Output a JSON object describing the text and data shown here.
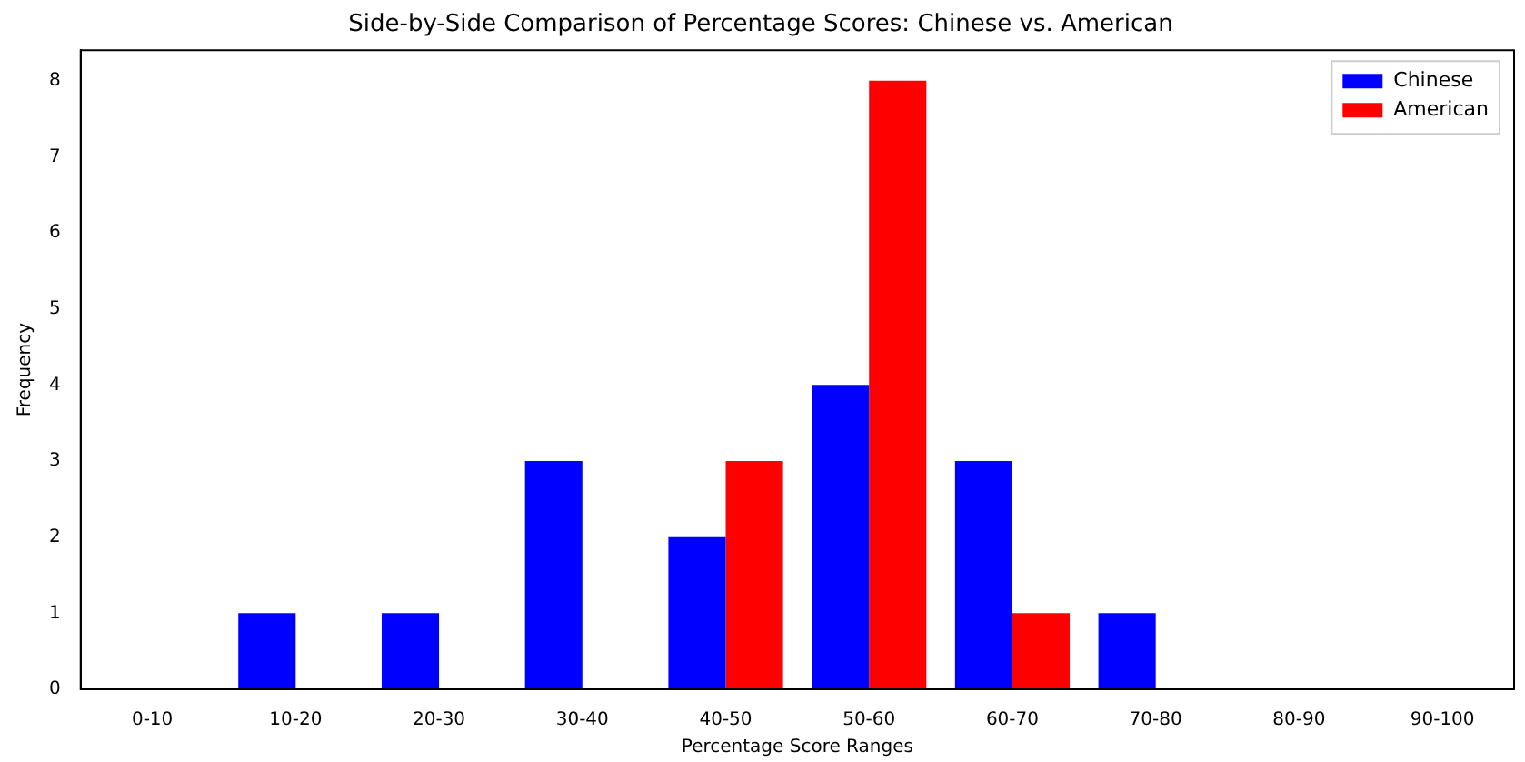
{
  "chart_data": {
    "type": "bar",
    "title": "Side-by-Side Comparison of Percentage Scores: Chinese vs. American",
    "xlabel": "Percentage Score Ranges",
    "ylabel": "Frequency",
    "categories": [
      "0-10",
      "10-20",
      "20-30",
      "30-40",
      "40-50",
      "50-60",
      "60-70",
      "70-80",
      "80-90",
      "90-100"
    ],
    "series": [
      {
        "name": "Chinese",
        "color": "#0000ff",
        "values": [
          0,
          1,
          1,
          3,
          2,
          4,
          3,
          1,
          0,
          0
        ]
      },
      {
        "name": "American",
        "color": "#ff0000",
        "values": [
          0,
          0,
          0,
          0,
          3,
          8,
          1,
          0,
          0,
          0
        ]
      }
    ],
    "ylim": [
      0,
      8.4
    ],
    "yticks": [
      0,
      1,
      2,
      3,
      4,
      5,
      6,
      7,
      8
    ],
    "grid": false,
    "legend": "top right"
  }
}
